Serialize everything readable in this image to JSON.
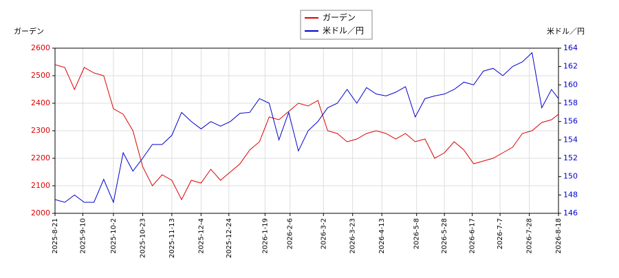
{
  "chart_data": {
    "type": "line",
    "y_label": "ガーデン",
    "y2_label": "米ドル／円",
    "x": [
      "2025-8-21",
      "2025-8-28",
      "2025-9-4",
      "2025-9-11",
      "2025-9-18",
      "2025-9-25",
      "2025-10-2",
      "2025-10-9",
      "2025-10-16",
      "2025-10-23",
      "2025-10-30",
      "2025-11-6",
      "2025-11-13",
      "2025-11-20",
      "2025-11-27",
      "2025-12-4",
      "2025-12-11",
      "2025-12-18",
      "2025-12-25",
      "2026-1-1",
      "2026-1-8",
      "2026-1-15",
      "2026-1-22",
      "2026-1-29",
      "2026-2-5",
      "2026-2-12",
      "2026-2-19",
      "2026-2-26",
      "2026-3-5",
      "2026-3-12",
      "2026-3-19",
      "2026-3-26",
      "2026-4-2",
      "2026-4-9",
      "2026-4-16",
      "2026-4-23",
      "2026-4-30",
      "2026-5-7",
      "2026-5-14",
      "2026-5-21",
      "2026-5-28",
      "2026-6-4",
      "2026-6-11",
      "2026-6-18",
      "2026-6-25",
      "2026-7-2",
      "2026-7-9",
      "2026-7-16",
      "2026-7-23",
      "2026-7-30",
      "2026-8-6",
      "2026-8-13",
      "2026-8-18"
    ],
    "series": [
      {
        "name": "ガーデン",
        "color": "#dd0000",
        "axis": "y",
        "values": [
          2540,
          2530,
          2450,
          2530,
          2510,
          2500,
          2380,
          2360,
          2300,
          2170,
          2100,
          2140,
          2120,
          2050,
          2120,
          2110,
          2160,
          2120,
          2150,
          2180,
          2230,
          2260,
          2350,
          2340,
          2370,
          2400,
          2390,
          2410,
          2300,
          2290,
          2260,
          2270,
          2290,
          2300,
          2290,
          2270,
          2290,
          2260,
          2270,
          2200,
          2220,
          2260,
          2230,
          2180,
          2190,
          2200,
          2220,
          2240,
          2290,
          2300,
          2330,
          2340,
          2360
        ]
      },
      {
        "name": "米ドル／円",
        "color": "#0000cc",
        "axis": "y2",
        "values": [
          147.5,
          147.2,
          148,
          147.2,
          147.2,
          149.7,
          147.2,
          152.6,
          150.6,
          152,
          153.5,
          153.5,
          154.5,
          157,
          156,
          155.2,
          156,
          155.5,
          156,
          156.9,
          157,
          158.5,
          158,
          154,
          157,
          152.8,
          155,
          156,
          157.5,
          158,
          159.5,
          158,
          159.7,
          159,
          158.8,
          159.2,
          159.8,
          156.5,
          158.5,
          158.8,
          159,
          159.5,
          160.3,
          160,
          161.5,
          161.8,
          161,
          162,
          162.5,
          163.5,
          157.5,
          159.5,
          158.5
        ]
      }
    ],
    "xlim": [
      "2025-8-21",
      "2026-8-18"
    ],
    "xticks": [
      "2025-8-21",
      "2025-9-10",
      "2025-10-2",
      "2025-10-23",
      "2025-11-13",
      "2025-12-4",
      "2025-12-24",
      "2026-1-19",
      "2026-2-6",
      "2026-3-2",
      "2026-3-23",
      "2026-4-13",
      "2026-5-8",
      "2026-5-28",
      "2026-6-17",
      "2026-7-7",
      "2026-7-28",
      "2026-8-18"
    ],
    "ylim": [
      2000,
      2600
    ],
    "yticks": [
      2000,
      2100,
      2200,
      2300,
      2400,
      2500,
      2600
    ],
    "y2lim": [
      146,
      164
    ],
    "y2ticks": [
      146,
      148,
      150,
      152,
      154,
      156,
      158,
      160,
      162,
      164
    ],
    "grid": true,
    "legend": "top"
  }
}
